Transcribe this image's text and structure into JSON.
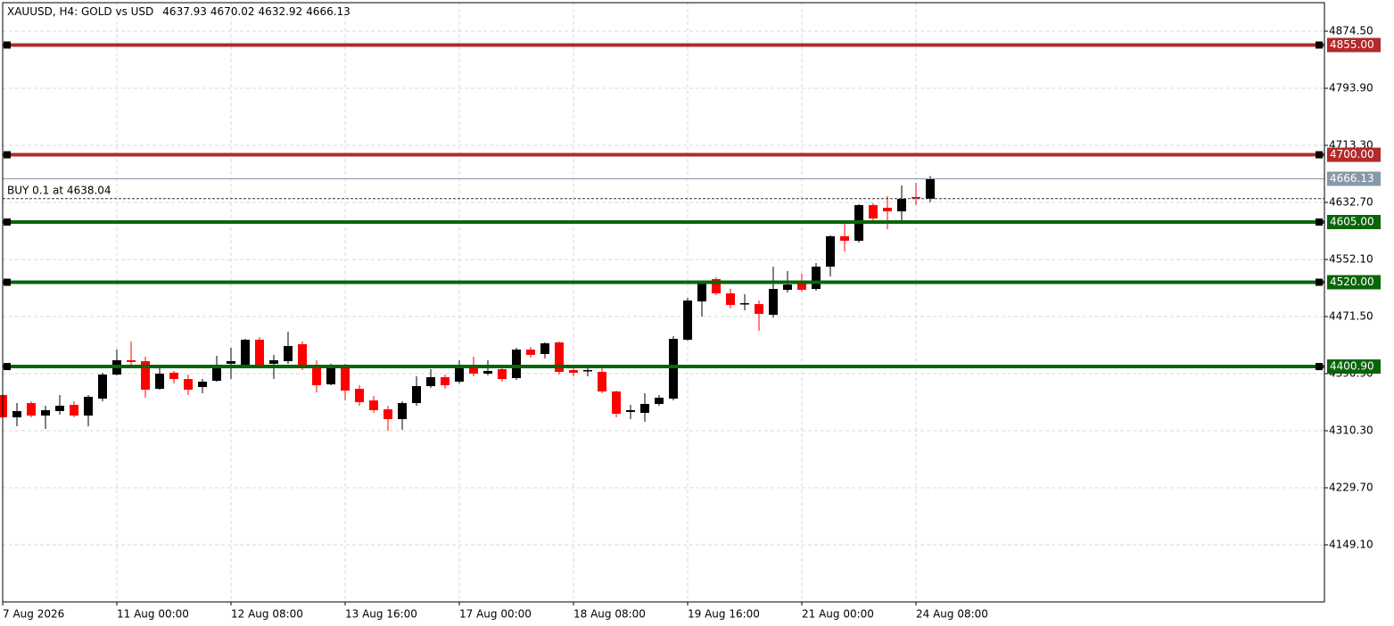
{
  "chart_data": {
    "type": "candlestick",
    "title": "XAUUSD, H4:  GOLD vs USD",
    "categories": [
      "7 Aug 2026",
      null,
      null,
      null,
      null,
      null,
      null,
      null,
      "11 Aug 00:00",
      null,
      null,
      null,
      null,
      null,
      null,
      null,
      "12 Aug 08:00",
      null,
      null,
      null,
      null,
      null,
      null,
      null,
      "13 Aug 16:00",
      null,
      null,
      null,
      null,
      null,
      null,
      null,
      "17 Aug 00:00",
      null,
      null,
      null,
      null,
      null,
      null,
      null,
      "18 Aug 08:00",
      null,
      null,
      null,
      null,
      null,
      null,
      null,
      "19 Aug 16:00",
      null,
      null,
      null,
      null,
      null,
      null,
      null,
      "21 Aug 00:00",
      null,
      null,
      null,
      null,
      null,
      null,
      null,
      "24 Aug 08:00",
      null
    ],
    "open": [
      4360.7,
      4329.2,
      4349.3,
      4331.7,
      4338.0,
      4346.8,
      4331.7,
      4355.6,
      4389.6,
      4409.8,
      4408.5,
      4369.5,
      4392.2,
      4383.3,
      4372.0,
      4380.8,
      4404.8,
      4403.5,
      4438.8,
      4404.8,
      4408.5,
      4432.5,
      4399.7,
      4375.8,
      4401.0,
      4369.5,
      4353.1,
      4340.5,
      4326.7,
      4349.3,
      4373.3,
      4385.9,
      4379.6,
      4401.0,
      4390.9,
      4397.2,
      4384.6,
      4424.9,
      4418.6,
      4435.0,
      4395.9,
      4394.7,
      4393.4,
      4365.7,
      4336.8,
      4335.5,
      4348.1,
      4355.6,
      4438.8,
      4492.9,
      4524.4,
      4504.3,
      4489.1,
      4489.1,
      4474.0,
      4509.3,
      4521.9,
      4510.5,
      4542.0,
      4584.9,
      4578.6,
      4628.9,
      4625.1,
      4620.1,
      4640.3,
      4637.93
    ],
    "high": [
      4364.5,
      4349.3,
      4351.9,
      4345.6,
      4360.7,
      4351.9,
      4360.7,
      4392.2,
      4424.9,
      4436.2,
      4414.8,
      4401.0,
      4394.7,
      4389.6,
      4383.3,
      4416.1,
      4427.4,
      4440.0,
      4442.5,
      4417.4,
      4450.1,
      4436.2,
      4409.8,
      4404.8,
      4404.8,
      4374.5,
      4359.4,
      4345.6,
      4351.9,
      4387.1,
      4397.2,
      4389.6,
      4409.8,
      4414.8,
      4409.8,
      4403.5,
      4427.4,
      4428.7,
      4435.0,
      4436.2,
      4402.2,
      4402.2,
      4402.2,
      4367.0,
      4346.8,
      4363.2,
      4360.7,
      4443.8,
      4498.0,
      4521.9,
      4526.9,
      4510.5,
      4503.0,
      4494.2,
      4542.0,
      4535.7,
      4532.0,
      4547.1,
      4586.1,
      4603.7,
      4630.2,
      4631.4,
      4641.5,
      4656.6,
      4660.4,
      4670.02
    ],
    "low": [
      4326.7,
      4316.6,
      4329.2,
      4312.8,
      4333.0,
      4329.2,
      4316.6,
      4351.9,
      4388.4,
      4399.7,
      4356.9,
      4368.2,
      4377.1,
      4360.7,
      4363.2,
      4379.6,
      4383.3,
      4402.2,
      4402.2,
      4383.3,
      4404.8,
      4395.9,
      4364.5,
      4374.5,
      4353.1,
      4345.6,
      4335.5,
      4310.3,
      4311.6,
      4345.6,
      4370.8,
      4369.5,
      4377.1,
      4387.1,
      4388.4,
      4379.6,
      4382.1,
      4413.6,
      4412.3,
      4389.6,
      4387.1,
      4387.1,
      4363.2,
      4329.2,
      4326.7,
      4322.9,
      4345.6,
      4353.1,
      4437.5,
      4471.5,
      4501.7,
      4482.8,
      4480.3,
      4451.4,
      4470.2,
      4505.5,
      4506.8,
      4508.0,
      4528.2,
      4563.4,
      4576.0,
      4603.7,
      4594.9,
      4607.5,
      4628.9,
      4632.92
    ],
    "close": [
      4329.2,
      4338.0,
      4331.7,
      4339.3,
      4345.6,
      4331.7,
      4358.2,
      4389.6,
      4409.8,
      4407.3,
      4368.2,
      4390.9,
      4383.3,
      4368.2,
      4379.6,
      4399.7,
      4408.5,
      4438.8,
      4403.5,
      4409.8,
      4429.9,
      4398.5,
      4374.5,
      4401.0,
      4367.0,
      4350.6,
      4339.3,
      4326.7,
      4349.3,
      4373.3,
      4385.9,
      4374.5,
      4399.7,
      4390.9,
      4394.7,
      4383.3,
      4424.9,
      4417.4,
      4433.7,
      4393.4,
      4392.2,
      4395.9,
      4365.7,
      4334.2,
      4339.3,
      4348.1,
      4356.9,
      4440.0,
      4494.2,
      4519.4,
      4504.3,
      4487.9,
      4490.4,
      4475.3,
      4510.5,
      4516.8,
      4509.3,
      4542.0,
      4584.9,
      4578.6,
      4628.9,
      4610.0,
      4620.1,
      4637.7,
      4639.0,
      4666.13
    ],
    "up_color": "#000000",
    "down_color": "#ff0000",
    "ylim": [
      4068.5,
      4914.8
    ],
    "yticks": [
      {
        "value": 4874.5,
        "label": "4874.50"
      },
      {
        "value": 4793.9,
        "label": "4793.90"
      },
      {
        "value": 4713.3,
        "label": "4713.30"
      },
      {
        "value": 4632.7,
        "label": "4632.70"
      },
      {
        "value": 4552.1,
        "label": "4552.10"
      },
      {
        "value": 4471.5,
        "label": "4471.50"
      },
      {
        "value": 4390.9,
        "label": "4390.90"
      },
      {
        "value": 4310.3,
        "label": "4310.30"
      },
      {
        "value": 4229.7,
        "label": "4229.70"
      },
      {
        "value": 4149.1,
        "label": "4149.10"
      }
    ],
    "grid": true,
    "levels": [
      {
        "value": 4855,
        "label": "4855.00",
        "color": "#b22a2a"
      },
      {
        "value": 4700,
        "label": "4700.00",
        "color": "#b22a2a"
      },
      {
        "value": 4605,
        "label": "4605.00",
        "color": "#0a640a"
      },
      {
        "value": 4520,
        "label": "4520.00",
        "color": "#0a640a"
      },
      {
        "value": 4400.9,
        "label": "4400.90",
        "color": "#0a640a"
      }
    ],
    "current_price": 4666.13,
    "current_price_color": "#8798a8",
    "order": {
      "label": "BUY 0.1 at 4638.04",
      "price": 4638.04
    }
  }
}
